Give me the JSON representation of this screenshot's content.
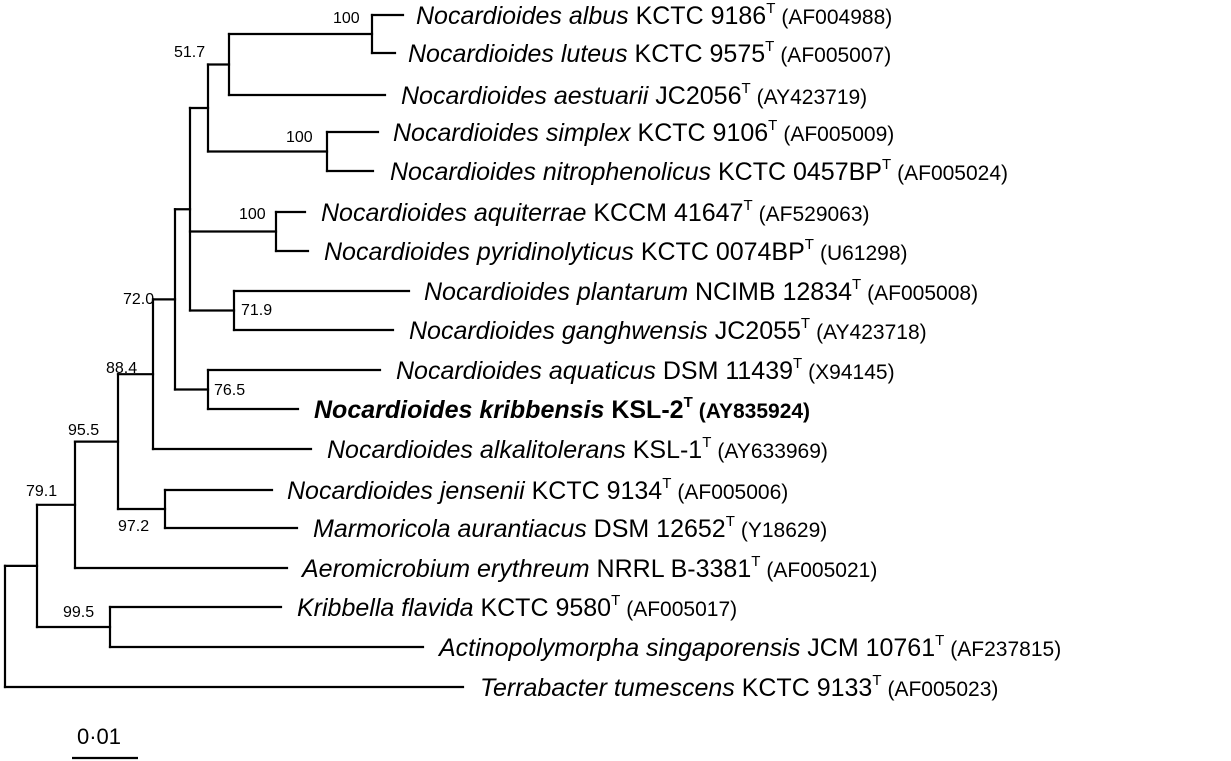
{
  "tree": {
    "taxa": [
      {
        "id": "albus",
        "species": "Nocardioides albus",
        "strain": "KCTC 9186",
        "type_mark": "T",
        "accession": "(AF004988)"
      },
      {
        "id": "luteus",
        "species": "Nocardioides luteus",
        "strain": "KCTC 9575",
        "type_mark": "T",
        "accession": "(AF005007)"
      },
      {
        "id": "aestuarii",
        "species": "Nocardioides aestuarii",
        "strain": "JC2056",
        "type_mark": "T",
        "accession": "(AY423719)"
      },
      {
        "id": "simplex",
        "species": "Nocardioides simplex",
        "strain": "KCTC 9106",
        "type_mark": "T",
        "accession": "(AF005009)"
      },
      {
        "id": "nitrophenolicus",
        "species": "Nocardioides nitrophenolicus",
        "strain": "KCTC 0457BP",
        "type_mark": "T",
        "accession": "(AF005024)"
      },
      {
        "id": "aquiterrae",
        "species": "Nocardioides aquiterrae",
        "strain": "KCCM 41647",
        "type_mark": "T",
        "accession": "(AF529063)"
      },
      {
        "id": "pyridinolyticus",
        "species": "Nocardioides pyridinolyticus",
        "strain": "KCTC 0074BP",
        "type_mark": "T",
        "accession": "(U61298)"
      },
      {
        "id": "plantarum",
        "species": "Nocardioides plantarum",
        "strain": "NCIMB 12834",
        "type_mark": "T",
        "accession": "(AF005008)"
      },
      {
        "id": "ganghwensis",
        "species": "Nocardioides ganghwensis",
        "strain": "JC2055",
        "type_mark": "T",
        "accession": "(AY423718)"
      },
      {
        "id": "aquaticus",
        "species": "Nocardioides aquaticus",
        "strain": "DSM 11439",
        "type_mark": "T",
        "accession": "(X94145)"
      },
      {
        "id": "kribbensis",
        "species": "Nocardioides kribbensis",
        "strain": "KSL-2",
        "type_mark": "T",
        "accession": "(AY835924)",
        "highlight": true
      },
      {
        "id": "alkalitolerans",
        "species": "Nocardioides alkalitolerans",
        "strain": "KSL-1",
        "type_mark": "T",
        "accession": "(AY633969)"
      },
      {
        "id": "jensenii",
        "species": "Nocardioides jensenii",
        "strain": "KCTC 9134",
        "type_mark": "T",
        "accession": "(AF005006)"
      },
      {
        "id": "marmoricola",
        "species": "Marmoricola aurantiacus",
        "strain": "DSM 12652",
        "type_mark": "T",
        "accession": "(Y18629)"
      },
      {
        "id": "aeromicrobium",
        "species": "Aeromicrobium erythreum",
        "strain": "NRRL B-3381",
        "type_mark": "T",
        "accession": "(AF005021)"
      },
      {
        "id": "kribbella",
        "species": "Kribbella flavida",
        "strain": "KCTC 9580",
        "type_mark": "T",
        "accession": "(AF005017)"
      },
      {
        "id": "actinopolymorpha",
        "species": "Actinopolymorpha singaporensis",
        "strain": "JCM 10761",
        "type_mark": "T",
        "accession": "(AF237815)"
      },
      {
        "id": "terrabacter",
        "species": "Terrabacter tumescens",
        "strain": "KCTC 9133",
        "type_mark": "T",
        "accession": "(AF005023)"
      }
    ],
    "support_values": [
      "100",
      "51.7",
      "100",
      "100",
      "71.9",
      "72.0",
      "76.5",
      "88.4",
      "95.5",
      "97.2",
      "79.1",
      "99.5"
    ],
    "scale_bar": {
      "label": "0·01"
    },
    "colors": {
      "line": "#000000",
      "text": "#000000",
      "background": "#ffffff"
    }
  }
}
